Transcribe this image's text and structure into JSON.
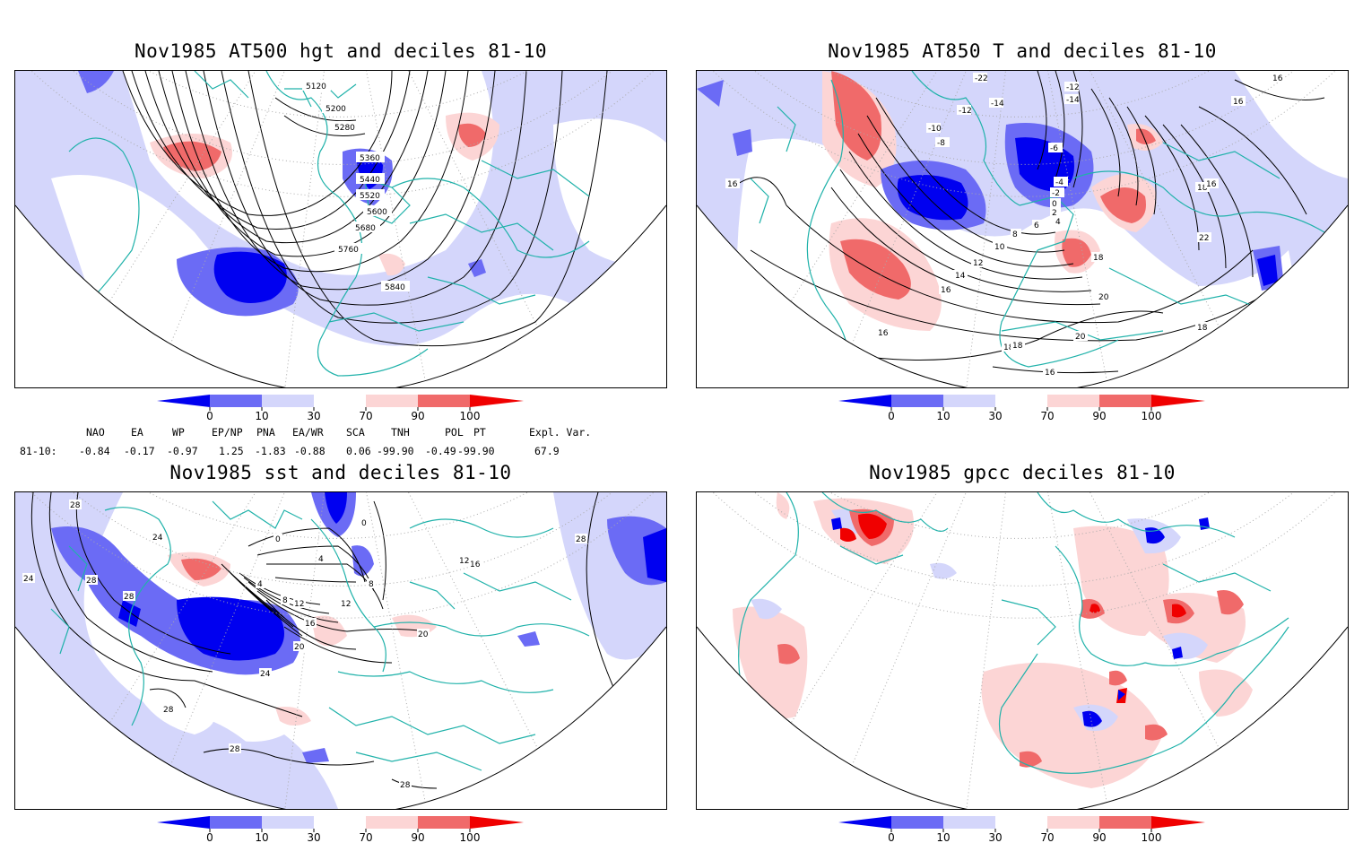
{
  "panels": [
    {
      "title": "Nov1985 AT500 hgt and deciles 81-10",
      "contour_labels": [
        "5120",
        "5200",
        "5280",
        "5360",
        "5440",
        "5520",
        "5600",
        "5680",
        "5760",
        "5840"
      ]
    },
    {
      "title": "Nov1985 AT850 T and deciles 81-10",
      "contour_labels": [
        "-22",
        "-14",
        "-12",
        "-10",
        "-8",
        "-6",
        "-4",
        "-2",
        "0",
        "2",
        "4",
        "6",
        "8",
        "10",
        "12",
        "14",
        "16",
        "18",
        "20",
        "22",
        "-12",
        "-14",
        "16",
        "16",
        "18",
        "16",
        "16",
        "18",
        "16",
        "18",
        "20",
        "16",
        "18"
      ]
    },
    {
      "title": "Nov1985 sst and deciles 81-10",
      "contour_labels": [
        "28",
        "24",
        "24",
        "28",
        "28",
        "0",
        "4",
        "8",
        "12",
        "12",
        "16",
        "20",
        "20",
        "24",
        "28",
        "28",
        "28",
        "16",
        "12",
        "28",
        "0",
        "4",
        "8"
      ]
    },
    {
      "title": "Nov1985 gpcc deciles 81-10",
      "contour_labels": []
    }
  ],
  "colorbar": {
    "ticks": [
      "0",
      "10",
      "30",
      "70",
      "90",
      "100"
    ],
    "colors": [
      "#0000f0",
      "#6b6bf5",
      "#d4d6fb",
      "#ffffff",
      "#fcd5d5",
      "#f06a6a",
      "#f00000"
    ]
  },
  "teleconnections": {
    "header": [
      "NAO",
      "EA",
      "WP",
      "EP/NP",
      "PNA",
      "EA/WR",
      "SCA",
      "TNH",
      "POL",
      "PT",
      "Expl. Var."
    ],
    "row_label": "81-10:",
    "values": [
      "-0.84",
      "-0.17",
      "-0.97",
      "1.25",
      "-1.83",
      "-0.88",
      "0.06",
      "-99.90",
      "-0.49",
      "-99.90",
      "67.9"
    ]
  }
}
